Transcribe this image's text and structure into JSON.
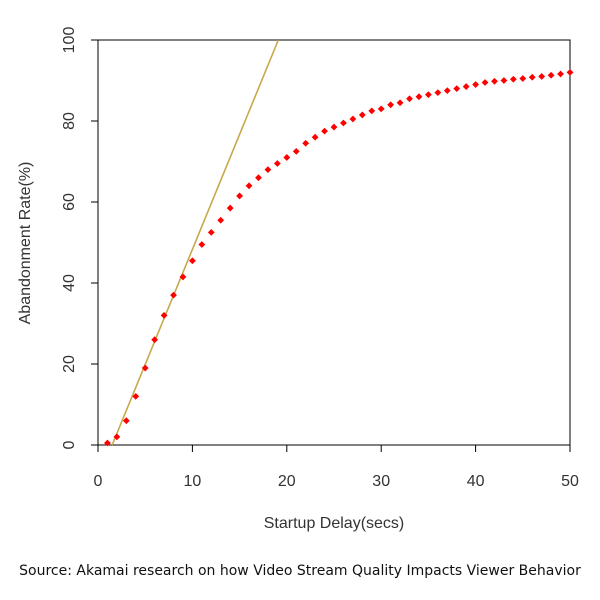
{
  "chart_data": {
    "type": "scatter",
    "xlabel": "Startup Delay(secs)",
    "ylabel": "Abandonment Rate(%)",
    "xlim": [
      0,
      50
    ],
    "ylim": [
      0,
      100
    ],
    "x_ticks": [
      0,
      10,
      20,
      30,
      40,
      50
    ],
    "y_ticks": [
      0,
      20,
      40,
      60,
      80,
      100
    ],
    "grid": false,
    "series": [
      {
        "marker_color": "#ff0000",
        "points": [
          [
            1,
            0.5
          ],
          [
            2,
            2
          ],
          [
            3,
            6
          ],
          [
            4,
            12
          ],
          [
            5,
            19
          ],
          [
            6,
            26
          ],
          [
            7,
            32
          ],
          [
            8,
            37
          ],
          [
            9,
            41.5
          ],
          [
            10,
            45.5
          ],
          [
            11,
            49.5
          ],
          [
            12,
            52.5
          ],
          [
            13,
            55.5
          ],
          [
            14,
            58.5
          ],
          [
            15,
            61.5
          ],
          [
            16,
            64
          ],
          [
            17,
            66
          ],
          [
            18,
            68
          ],
          [
            19,
            69.5
          ],
          [
            20,
            71
          ],
          [
            21,
            72.5
          ],
          [
            22,
            74.5
          ],
          [
            23,
            76
          ],
          [
            24,
            77.5
          ],
          [
            25,
            78.5
          ],
          [
            26,
            79.5
          ],
          [
            27,
            80.5
          ],
          [
            28,
            81.5
          ],
          [
            29,
            82.5
          ],
          [
            30,
            83
          ],
          [
            31,
            84
          ],
          [
            32,
            84.5
          ],
          [
            33,
            85.5
          ],
          [
            34,
            86
          ],
          [
            35,
            86.5
          ],
          [
            36,
            87
          ],
          [
            37,
            87.5
          ],
          [
            38,
            88
          ],
          [
            39,
            88.5
          ],
          [
            40,
            89
          ],
          [
            41,
            89.5
          ],
          [
            42,
            89.8
          ],
          [
            43,
            90
          ],
          [
            44,
            90.3
          ],
          [
            45,
            90.5
          ],
          [
            46,
            90.8
          ],
          [
            47,
            91
          ],
          [
            48,
            91.3
          ],
          [
            49,
            91.6
          ],
          [
            50,
            92
          ]
        ]
      }
    ],
    "trend_line": {
      "color": "#c8a84a",
      "points": [
        [
          1.5,
          0
        ],
        [
          19.1,
          100
        ]
      ]
    }
  },
  "caption": "Source: Akamai research on how Video Stream Quality Impacts Viewer Behavior"
}
